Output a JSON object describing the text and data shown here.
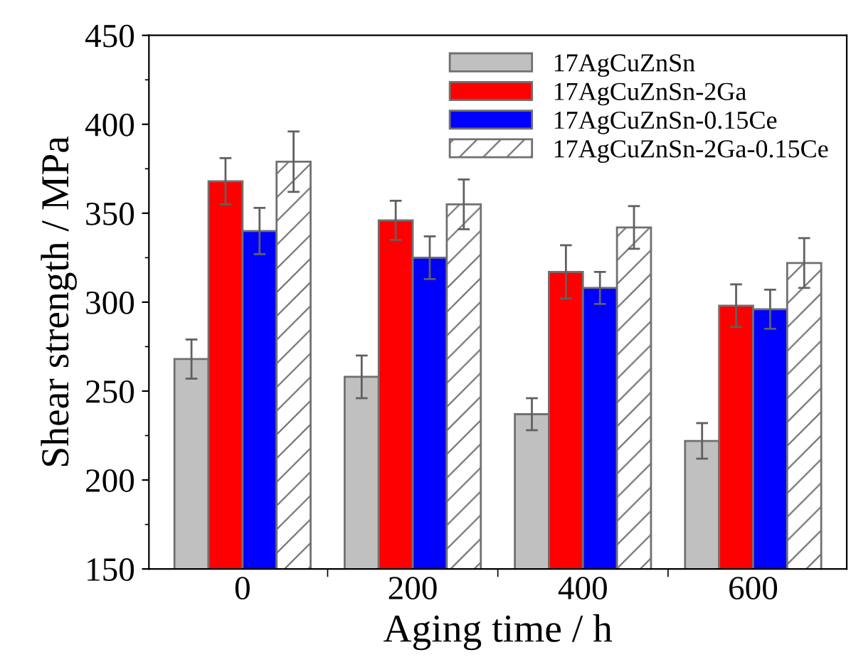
{
  "chart_data": {
    "type": "bar",
    "xlabel": "Aging time / h",
    "ylabel": "Shear strength / MPa",
    "categories": [
      "0",
      "200",
      "400",
      "600"
    ],
    "ylim": [
      150,
      450
    ],
    "yticks": [
      150,
      200,
      250,
      300,
      350,
      400,
      450
    ],
    "grid": false,
    "legend": "top right",
    "series": [
      {
        "name": "17AgCuZnSn",
        "color": "#c0c0c0",
        "values": [
          268,
          258,
          237,
          222
        ],
        "errors": [
          11,
          12,
          9,
          10
        ]
      },
      {
        "name": "17AgCuZnSn-2Ga",
        "color": "#ff0000",
        "values": [
          368,
          346,
          317,
          298
        ],
        "errors": [
          13,
          11,
          15,
          12
        ]
      },
      {
        "name": "17AgCuZnSn-0.15Ce",
        "color": "#0000ff",
        "values": [
          340,
          325,
          308,
          296
        ],
        "errors": [
          13,
          12,
          9,
          11
        ]
      },
      {
        "name": "17AgCuZnSn-2Ga-0.15Ce",
        "color": "#707070",
        "values": [
          379,
          355,
          342,
          322
        ],
        "errors": [
          17,
          14,
          12,
          14
        ]
      }
    ]
  }
}
